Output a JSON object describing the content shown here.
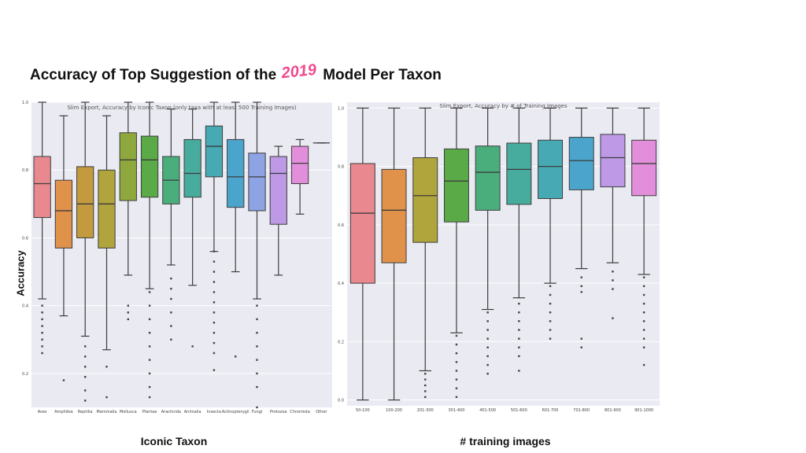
{
  "slide": {
    "title_before": "Accuracy of Top Suggestion of the",
    "year": "2019",
    "title_after": "Model Per Taxon",
    "left_xlabel": "Iconic Taxon",
    "right_xlabel": "# training images",
    "ylabel": "Accuracy"
  },
  "chart_data": [
    {
      "type": "box",
      "title": "Slim Export, Accuracy by Iconic Taxon (only taxa with at least 500 Training Images)",
      "xlabel": "Iconic Taxon",
      "ylabel": "Accuracy",
      "ylim": [
        0.1,
        1.0
      ],
      "yticks": [
        0.2,
        0.4,
        0.6,
        0.8,
        1.0
      ],
      "grid": true,
      "categories": [
        "Aves",
        "Amphibia",
        "Reptilia",
        "Mammalia",
        "Mollusca",
        "Plantae",
        "Arachnida",
        "Animalia",
        "Insecta",
        "Actinopterygii",
        "Fungi",
        "Protozoa",
        "Chromista",
        "Other"
      ],
      "boxes": [
        {
          "category": "Aves",
          "color": "#e9898f",
          "whislo": 0.42,
          "q1": 0.66,
          "med": 0.76,
          "q3": 0.84,
          "whishi": 1.0,
          "fliers": [
            0.4,
            0.38,
            0.36,
            0.34,
            0.32,
            0.3,
            0.28,
            0.26
          ]
        },
        {
          "category": "Amphibia",
          "color": "#e0914a",
          "whislo": 0.37,
          "q1": 0.57,
          "med": 0.68,
          "q3": 0.77,
          "whishi": 0.96,
          "fliers": [
            0.18
          ]
        },
        {
          "category": "Reptilia",
          "color": "#c39a3d",
          "whislo": 0.31,
          "q1": 0.6,
          "med": 0.7,
          "q3": 0.81,
          "whishi": 1.0,
          "fliers": [
            0.28,
            0.25,
            0.22,
            0.19,
            0.15,
            0.12
          ]
        },
        {
          "category": "Mammalia",
          "color": "#b0a43c",
          "whislo": 0.27,
          "q1": 0.57,
          "med": 0.7,
          "q3": 0.8,
          "whishi": 0.96,
          "fliers": [
            0.22,
            0.13
          ]
        },
        {
          "category": "Mollusca",
          "color": "#8fa83d",
          "whislo": 0.49,
          "q1": 0.71,
          "med": 0.83,
          "q3": 0.91,
          "whishi": 1.0,
          "fliers": [
            0.4,
            0.38,
            0.36
          ]
        },
        {
          "category": "Plantae",
          "color": "#5aab48",
          "whislo": 0.45,
          "q1": 0.72,
          "med": 0.83,
          "q3": 0.9,
          "whishi": 1.0,
          "fliers": [
            0.44,
            0.4,
            0.36,
            0.32,
            0.28,
            0.24,
            0.2,
            0.16,
            0.13
          ]
        },
        {
          "category": "Arachnida",
          "color": "#4aae7c",
          "whislo": 0.52,
          "q1": 0.7,
          "med": 0.77,
          "q3": 0.84,
          "whishi": 0.98,
          "fliers": [
            0.48,
            0.45,
            0.42,
            0.38,
            0.34,
            0.3
          ]
        },
        {
          "category": "Animalia",
          "color": "#47ab9d",
          "whislo": 0.46,
          "q1": 0.72,
          "med": 0.79,
          "q3": 0.89,
          "whishi": 0.98,
          "fliers": [
            0.28
          ]
        },
        {
          "category": "Insecta",
          "color": "#47a9b3",
          "whislo": 0.56,
          "q1": 0.78,
          "med": 0.87,
          "q3": 0.93,
          "whishi": 1.0,
          "fliers": [
            0.56,
            0.53,
            0.5,
            0.47,
            0.44,
            0.41,
            0.38,
            0.35,
            0.32,
            0.29,
            0.26,
            0.21
          ]
        },
        {
          "category": "Actinopterygii",
          "color": "#4ba4cc",
          "whislo": 0.5,
          "q1": 0.69,
          "med": 0.78,
          "q3": 0.89,
          "whishi": 1.0,
          "fliers": [
            0.25
          ]
        },
        {
          "category": "Fungi",
          "color": "#8ea3e3",
          "whislo": 0.42,
          "q1": 0.68,
          "med": 0.78,
          "q3": 0.85,
          "whishi": 1.0,
          "fliers": [
            0.4,
            0.36,
            0.32,
            0.28,
            0.24,
            0.2,
            0.16,
            0.1
          ]
        },
        {
          "category": "Protozoa",
          "color": "#bd99e6",
          "whislo": 0.49,
          "q1": 0.64,
          "med": 0.79,
          "q3": 0.84,
          "whishi": 0.87,
          "fliers": []
        },
        {
          "category": "Chromista",
          "color": "#e38edb",
          "whislo": 0.67,
          "q1": 0.76,
          "med": 0.82,
          "q3": 0.87,
          "whishi": 0.89,
          "fliers": []
        },
        {
          "category": "Other",
          "color": "#555555",
          "whislo": 0.88,
          "q1": 0.88,
          "med": 0.88,
          "q3": 0.88,
          "whishi": 0.88,
          "fliers": []
        }
      ]
    },
    {
      "type": "box",
      "title": "Slim Export, Accuracy by # of Training Images",
      "xlabel": "# training images",
      "ylim": [
        -0.02,
        1.02
      ],
      "yticks": [
        0.0,
        0.2,
        0.4,
        0.6,
        0.8,
        1.0
      ],
      "grid": true,
      "categories": [
        "50-100",
        "100-200",
        "201-300",
        "301-400",
        "401-500",
        "501-600",
        "601-700",
        "701-800",
        "801-900",
        "901-1000"
      ],
      "boxes": [
        {
          "category": "50-100",
          "color": "#e9898f",
          "whislo": 0.0,
          "q1": 0.4,
          "med": 0.64,
          "q3": 0.81,
          "whishi": 1.0,
          "fliers": []
        },
        {
          "category": "100-200",
          "color": "#e0914a",
          "whislo": 0.0,
          "q1": 0.47,
          "med": 0.65,
          "q3": 0.79,
          "whishi": 1.0,
          "fliers": []
        },
        {
          "category": "201-300",
          "color": "#b0a43c",
          "whislo": 0.1,
          "q1": 0.54,
          "med": 0.7,
          "q3": 0.83,
          "whishi": 1.0,
          "fliers": [
            0.09,
            0.07,
            0.05,
            0.03,
            0.01
          ]
        },
        {
          "category": "301-400",
          "color": "#5aab48",
          "whislo": 0.23,
          "q1": 0.61,
          "med": 0.75,
          "q3": 0.86,
          "whishi": 1.0,
          "fliers": [
            0.22,
            0.19,
            0.16,
            0.13,
            0.1,
            0.07,
            0.04,
            0.01
          ]
        },
        {
          "category": "401-500",
          "color": "#4aae7c",
          "whislo": 0.31,
          "q1": 0.65,
          "med": 0.78,
          "q3": 0.87,
          "whishi": 1.0,
          "fliers": [
            0.3,
            0.27,
            0.24,
            0.21,
            0.18,
            0.15,
            0.12,
            0.09
          ]
        },
        {
          "category": "501-600",
          "color": "#47ab9d",
          "whislo": 0.35,
          "q1": 0.67,
          "med": 0.79,
          "q3": 0.88,
          "whishi": 1.0,
          "fliers": [
            0.33,
            0.3,
            0.27,
            0.24,
            0.21,
            0.18,
            0.15,
            0.1
          ]
        },
        {
          "category": "601-700",
          "color": "#47a9b3",
          "whislo": 0.4,
          "q1": 0.69,
          "med": 0.8,
          "q3": 0.89,
          "whishi": 1.0,
          "fliers": [
            0.39,
            0.36,
            0.33,
            0.3,
            0.27,
            0.24,
            0.21
          ]
        },
        {
          "category": "701-800",
          "color": "#4ba4cc",
          "whislo": 0.45,
          "q1": 0.72,
          "med": 0.82,
          "q3": 0.9,
          "whishi": 1.0,
          "fliers": [
            0.42,
            0.39,
            0.37,
            0.21,
            0.18
          ]
        },
        {
          "category": "801-900",
          "color": "#bd99e6",
          "whislo": 0.47,
          "q1": 0.73,
          "med": 0.83,
          "q3": 0.91,
          "whishi": 1.0,
          "fliers": [
            0.44,
            0.41,
            0.38,
            0.28
          ]
        },
        {
          "category": "901-1000",
          "color": "#e38edb",
          "whislo": 0.43,
          "q1": 0.7,
          "med": 0.81,
          "q3": 0.89,
          "whishi": 1.0,
          "fliers": [
            0.42,
            0.39,
            0.36,
            0.33,
            0.3,
            0.27,
            0.24,
            0.21,
            0.18,
            0.12
          ]
        }
      ]
    }
  ]
}
